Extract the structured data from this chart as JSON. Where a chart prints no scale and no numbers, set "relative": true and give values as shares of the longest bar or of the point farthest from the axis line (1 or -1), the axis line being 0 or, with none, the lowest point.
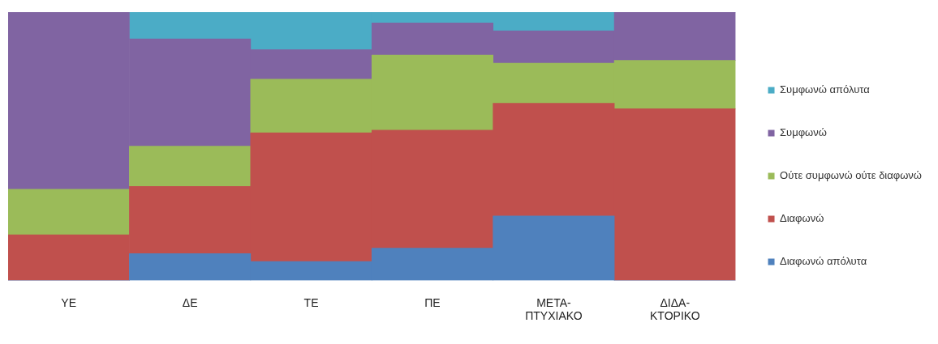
{
  "chart_data": {
    "type": "bar",
    "stacked": true,
    "relative": true,
    "legend": "right",
    "grid": false,
    "categories": [
      "ΥΕ",
      "ΔΕ",
      "ΤΕ",
      "ΠΕ",
      "ΜΕΤΑ-\nΠΤΥΧΙΑΚΟ",
      "ΔΙΔΑ-\nΚΤΟΡΙΚΟ"
    ],
    "series": [
      {
        "name": "Διαφωνώ απόλυτα",
        "color": "#4f81bd",
        "values": [
          0,
          0.1,
          0.07,
          0.12,
          0.24,
          0
        ]
      },
      {
        "name": "Διαφωνώ",
        "color": "#c0504d",
        "values": [
          0.17,
          0.25,
          0.48,
          0.44,
          0.42,
          0.64
        ]
      },
      {
        "name": "Ούτε συμφωνώ ούτε διαφωνώ",
        "color": "#9bbb59",
        "values": [
          0.17,
          0.15,
          0.2,
          0.28,
          0.15,
          0.18
        ]
      },
      {
        "name": "Συμφωνώ",
        "color": "#8064a2",
        "values": [
          0.66,
          0.4,
          0.11,
          0.12,
          0.12,
          0.18
        ]
      },
      {
        "name": "Συμφωνώ απόλυτα",
        "color": "#4bacc6",
        "values": [
          0,
          0.1,
          0.14,
          0.04,
          0.07,
          0
        ]
      }
    ]
  }
}
